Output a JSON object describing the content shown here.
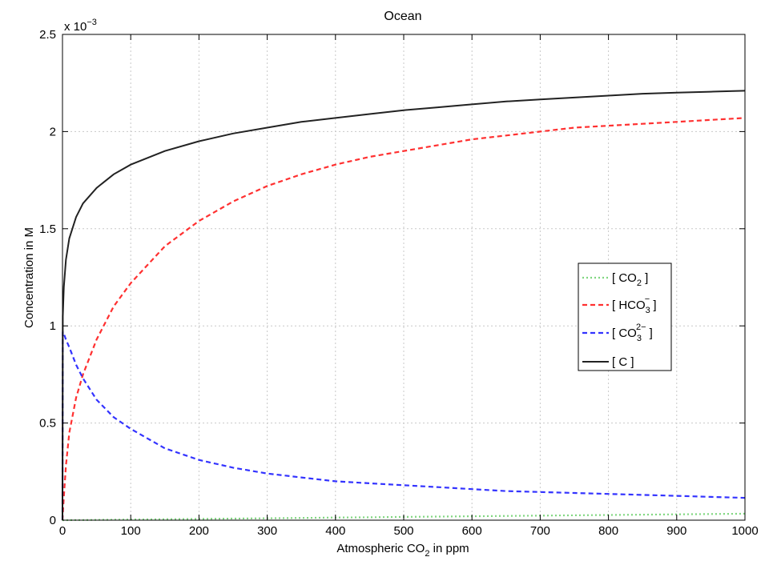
{
  "chart_data": {
    "type": "line",
    "title": "Ocean",
    "xlabel": {
      "base": "Atmospheric CO",
      "sub": "2",
      "tail": " in ppm"
    },
    "ylabel": "Concentration in M",
    "y_multiplier": {
      "base": "x 10",
      "sup": "−3"
    },
    "xlim": [
      0,
      1000
    ],
    "ylim": [
      0,
      2.5
    ],
    "y_scale_factor": "1e-3",
    "xticks": [
      "0",
      "100",
      "200",
      "300",
      "400",
      "500",
      "600",
      "700",
      "800",
      "900",
      "1000"
    ],
    "yticks": [
      "0",
      "0.5",
      "1",
      "1.5",
      "2",
      "2.5"
    ],
    "grid": true,
    "legend_position": "right-middle",
    "x": [
      0.5,
      2,
      5,
      10,
      20,
      30,
      50,
      75,
      100,
      150,
      200,
      250,
      300,
      350,
      400,
      450,
      500,
      550,
      600,
      650,
      700,
      750,
      800,
      850,
      900,
      950,
      1000
    ],
    "series": [
      {
        "name": {
          "base": "[ CO",
          "sub": "2",
          "sup": "",
          "tail": " ]"
        },
        "color": "#7fd67f",
        "dash": "dotted",
        "values": [
          2e-05,
          6e-05,
          0.00017,
          0.00034,
          0.00068,
          0.001,
          0.0017,
          0.0025,
          0.0034,
          0.005,
          0.0067,
          0.0084,
          0.01,
          0.0117,
          0.0134,
          0.015,
          0.0167,
          0.0184,
          0.02,
          0.0217,
          0.0234,
          0.025,
          0.0267,
          0.0284,
          0.03,
          0.0317,
          0.0334
        ]
      },
      {
        "name": {
          "base": "[ HCO",
          "sub": "3",
          "sup": "−",
          "tail": " ]"
        },
        "color": "#ff3030",
        "dash": "dashed",
        "values": [
          0.03,
          0.12,
          0.28,
          0.45,
          0.63,
          0.75,
          0.93,
          1.1,
          1.22,
          1.41,
          1.54,
          1.64,
          1.72,
          1.78,
          1.83,
          1.87,
          1.9,
          1.93,
          1.96,
          1.98,
          2.0,
          2.02,
          2.03,
          2.04,
          2.05,
          2.06,
          2.07
        ]
      },
      {
        "name": {
          "base": "[ CO",
          "sub": "3",
          "sup": "2−",
          "tail": " ]"
        },
        "color": "#3333ff",
        "dash": "dashed",
        "values": [
          0.97,
          0.96,
          0.93,
          0.89,
          0.8,
          0.73,
          0.62,
          0.53,
          0.47,
          0.37,
          0.31,
          0.27,
          0.24,
          0.22,
          0.2,
          0.19,
          0.18,
          0.17,
          0.16,
          0.15,
          0.145,
          0.14,
          0.135,
          0.13,
          0.125,
          0.12,
          0.115
        ]
      },
      {
        "name": {
          "base": "[ C",
          "sub": "",
          "sup": "",
          "tail": " ]"
        },
        "color": "#222222",
        "dash": "solid",
        "values": [
          1.05,
          1.2,
          1.34,
          1.45,
          1.56,
          1.63,
          1.71,
          1.78,
          1.83,
          1.9,
          1.95,
          1.99,
          2.02,
          2.05,
          2.07,
          2.09,
          2.11,
          2.125,
          2.14,
          2.155,
          2.165,
          2.175,
          2.185,
          2.195,
          2.2,
          2.205,
          2.21
        ]
      }
    ]
  }
}
